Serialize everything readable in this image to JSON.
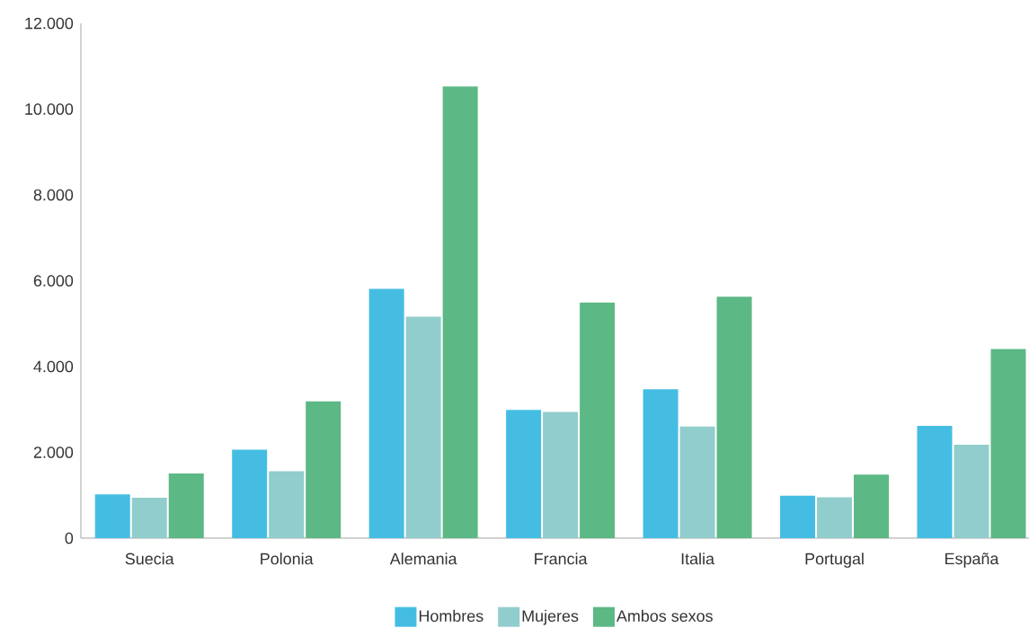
{
  "chart_data": {
    "type": "bar",
    "categories": [
      "Suecia",
      "Polonia",
      "Alemania",
      "Francia",
      "Italia",
      "Portugal",
      "España"
    ],
    "series": [
      {
        "name": "Hombres",
        "color": "#45bde3",
        "values": [
          1020,
          2060,
          5810,
          2990,
          3470,
          990,
          2620
        ]
      },
      {
        "name": "Mujeres",
        "color": "#91cdcc",
        "values": [
          940,
          1560,
          5160,
          2940,
          2600,
          950,
          2180
        ]
      },
      {
        "name": "Ambos sexos",
        "color": "#5cb884",
        "values": [
          1510,
          3190,
          10530,
          5490,
          5630,
          1480,
          4410
        ]
      }
    ],
    "ylim": [
      0,
      12000
    ],
    "yticks": [
      {
        "value": 0,
        "label": "0"
      },
      {
        "value": 2000,
        "label": "2.000"
      },
      {
        "value": 4000,
        "label": "4.000"
      },
      {
        "value": 6000,
        "label": "6.000"
      },
      {
        "value": 8000,
        "label": "8.000"
      },
      {
        "value": 10000,
        "label": "10.000"
      },
      {
        "value": 12000,
        "label": "12.000"
      }
    ],
    "grid": false,
    "legend": "bottom"
  }
}
